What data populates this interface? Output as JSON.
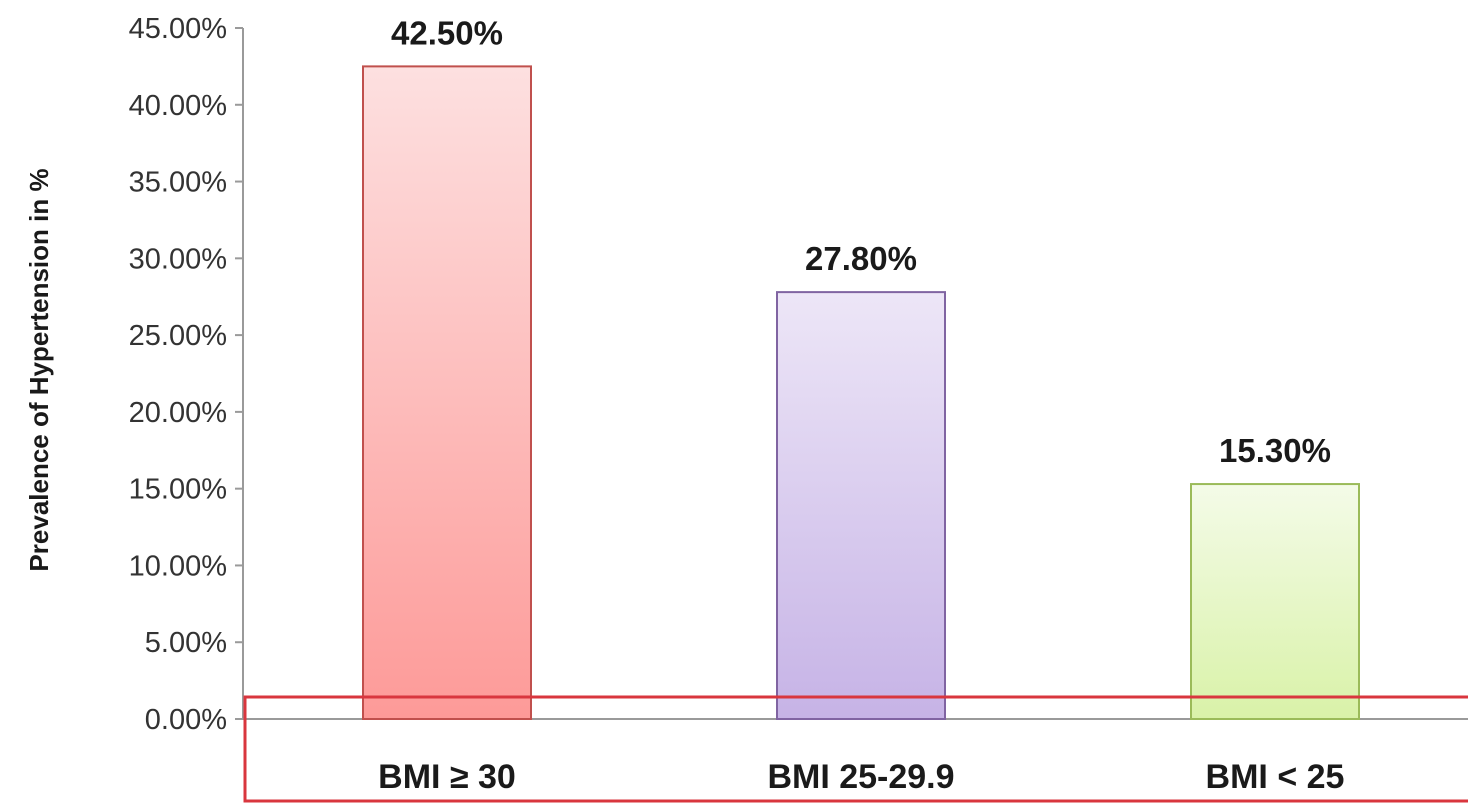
{
  "chart_data": {
    "type": "bar",
    "title": "",
    "xlabel": "",
    "ylabel": "Prevalence of Hypertension in %",
    "categories": [
      "BMI ≥ 30",
      "BMI 25-29.9",
      "BMI < 25"
    ],
    "values": [
      42.5,
      27.8,
      15.3
    ],
    "value_labels": [
      "42.50%",
      "27.80%",
      "15.30%"
    ],
    "ylim": [
      0,
      45
    ],
    "yticks": [
      0,
      5,
      10,
      15,
      20,
      25,
      30,
      35,
      40,
      45
    ],
    "ytick_labels": [
      "0.00%",
      "5.00%",
      "10.00%",
      "15.00%",
      "20.00%",
      "25.00%",
      "30.00%",
      "35.00%",
      "40.00%",
      "45.00%"
    ],
    "grid": false,
    "legend": "none",
    "bar_colors": [
      {
        "top": "#fde0e0",
        "bottom": "#fd9a98",
        "stroke": "#c0504d"
      },
      {
        "top": "#ede6f7",
        "bottom": "#c6b3e6",
        "stroke": "#8064a2"
      },
      {
        "top": "#f4fbe8",
        "bottom": "#d9f2a8",
        "stroke": "#9bbb59"
      }
    ],
    "highlight_box_color": "#d9363e"
  }
}
